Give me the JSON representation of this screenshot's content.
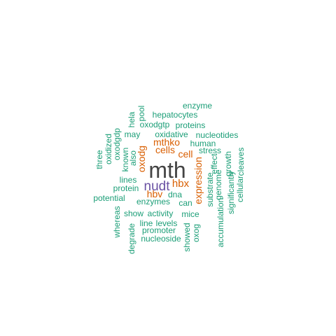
{
  "palette": {
    "primary": "#444444",
    "accent_purple": "#6a51a3",
    "accent_orange": "#d95f02",
    "teal": "#1b9e77"
  },
  "words": [
    {
      "id": "mth",
      "text": "mth",
      "color": "#444444"
    },
    {
      "id": "nudt",
      "text": "nudt",
      "color": "#6a51a3"
    },
    {
      "id": "hbx",
      "text": "hbx",
      "color": "#d95f02"
    },
    {
      "id": "hbv",
      "text": "hbv",
      "color": "#d95f02"
    },
    {
      "id": "oxodg",
      "text": "oxodg",
      "color": "#d95f02"
    },
    {
      "id": "expression",
      "text": "expression",
      "color": "#d95f02"
    },
    {
      "id": "cells",
      "text": "cells",
      "color": "#d95f02"
    },
    {
      "id": "mthko",
      "text": "mthko",
      "color": "#d95f02"
    },
    {
      "id": "cell",
      "text": "cell",
      "color": "#d95f02"
    },
    {
      "id": "enzyme",
      "text": "enzyme",
      "color": "#1b9e77"
    },
    {
      "id": "hepatocytes",
      "text": "hepatocytes",
      "color": "#1b9e77"
    },
    {
      "id": "pool",
      "text": "pool",
      "color": "#1b9e77"
    },
    {
      "id": "hela",
      "text": "hela",
      "color": "#1b9e77"
    },
    {
      "id": "oxodgtp",
      "text": "oxodgtp",
      "color": "#1b9e77"
    },
    {
      "id": "proteins",
      "text": "proteins",
      "color": "#1b9e77"
    },
    {
      "id": "may",
      "text": "may",
      "color": "#1b9e77"
    },
    {
      "id": "oxidative",
      "text": "oxidative",
      "color": "#1b9e77"
    },
    {
      "id": "nucleotides",
      "text": "nucleotides",
      "color": "#1b9e77"
    },
    {
      "id": "oxodgdp",
      "text": "oxodgdp",
      "color": "#1b9e77"
    },
    {
      "id": "oxidized",
      "text": "oxidized",
      "color": "#1b9e77"
    },
    {
      "id": "human",
      "text": "human",
      "color": "#1b9e77"
    },
    {
      "id": "known",
      "text": "known",
      "color": "#1b9e77"
    },
    {
      "id": "stress",
      "text": "stress",
      "color": "#1b9e77"
    },
    {
      "id": "three",
      "text": "three",
      "color": "#1b9e77"
    },
    {
      "id": "also",
      "text": "also",
      "color": "#1b9e77"
    },
    {
      "id": "effect",
      "text": "effect",
      "color": "#1b9e77"
    },
    {
      "id": "growth",
      "text": "growth",
      "color": "#1b9e77"
    },
    {
      "id": "cleaves",
      "text": "cleaves",
      "color": "#1b9e77"
    },
    {
      "id": "genome",
      "text": "genome",
      "color": "#1b9e77"
    },
    {
      "id": "lines",
      "text": "lines",
      "color": "#1b9e77"
    },
    {
      "id": "protein",
      "text": "protein",
      "color": "#1b9e77"
    },
    {
      "id": "dna",
      "text": "dna",
      "color": "#1b9e77"
    },
    {
      "id": "potential",
      "text": "potential",
      "color": "#1b9e77"
    },
    {
      "id": "enzymes",
      "text": "enzymes",
      "color": "#1b9e77"
    },
    {
      "id": "can",
      "text": "can",
      "color": "#1b9e77"
    },
    {
      "id": "substrate",
      "text": "substrate",
      "color": "#1b9e77"
    },
    {
      "id": "significantly",
      "text": "significantly",
      "color": "#1b9e77"
    },
    {
      "id": "cellular",
      "text": "cellular",
      "color": "#1b9e77"
    },
    {
      "id": "show",
      "text": "show",
      "color": "#1b9e77"
    },
    {
      "id": "activity",
      "text": "activity",
      "color": "#1b9e77"
    },
    {
      "id": "mice",
      "text": "mice",
      "color": "#1b9e77"
    },
    {
      "id": "whereas",
      "text": "whereas",
      "color": "#1b9e77"
    },
    {
      "id": "line",
      "text": "line",
      "color": "#1b9e77"
    },
    {
      "id": "levels",
      "text": "levels",
      "color": "#1b9e77"
    },
    {
      "id": "accumulation",
      "text": "accumulation",
      "color": "#1b9e77"
    },
    {
      "id": "promoter",
      "text": "promoter",
      "color": "#1b9e77"
    },
    {
      "id": "showed",
      "text": "showed",
      "color": "#1b9e77"
    },
    {
      "id": "oxog",
      "text": "oxog",
      "color": "#1b9e77"
    },
    {
      "id": "degrade",
      "text": "degrade",
      "color": "#1b9e77"
    },
    {
      "id": "nucleoside",
      "text": "nucleoside",
      "color": "#1b9e77"
    }
  ]
}
